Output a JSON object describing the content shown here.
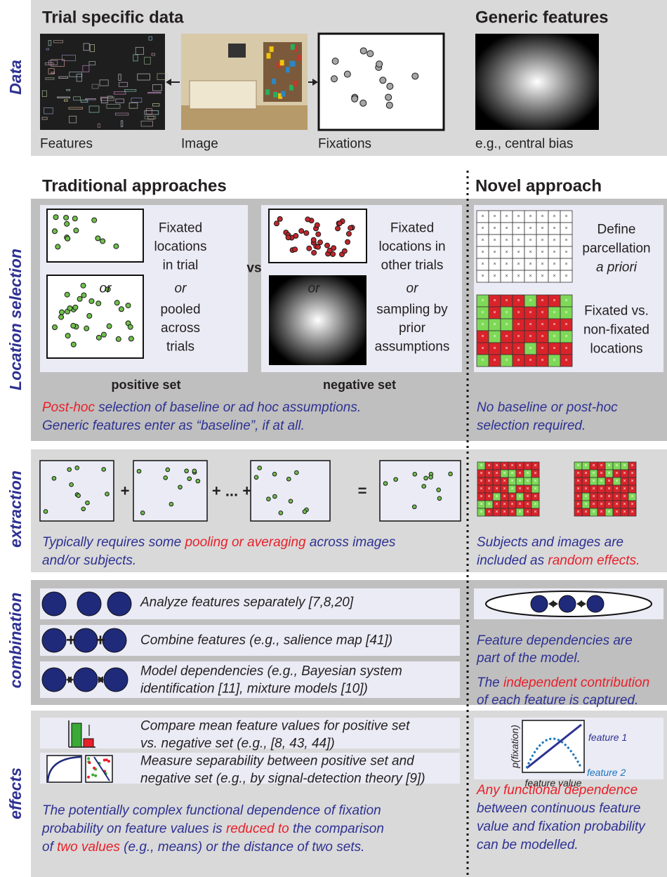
{
  "side_labels": [
    "Data",
    "Location selection",
    "extraction",
    "combination",
    "effects"
  ],
  "data": {
    "trial_title": "Trial specific data",
    "generic_title": "Generic features",
    "captions": [
      "Features",
      "Image",
      "Fixations",
      "e.g., central bias"
    ]
  },
  "headers": {
    "traditional": "Traditional approaches",
    "novel": "Novel approach"
  },
  "location": {
    "positive_top": [
      "Fixated",
      "locations",
      "in trial"
    ],
    "positive_bottom": [
      "pooled",
      "across",
      "trials"
    ],
    "negative_top": [
      "Fixated",
      "locations in",
      "other trials"
    ],
    "negative_bottom": [
      "sampling by",
      "prior",
      "assumptions"
    ],
    "or": "or",
    "vs": "vs",
    "positive_label": "positive set",
    "negative_label": "negative set",
    "novel_top": [
      "Define",
      "parcellation",
      "a priori"
    ],
    "novel_bottom": [
      "Fixated vs.",
      "non-fixated",
      "locations"
    ],
    "note": [
      [
        {
          "text": "Post-hoc",
          "color": "#e8202a"
        },
        {
          "text": " selection of baseline or ad hoc assumptions.",
          "color": "#2e3192"
        }
      ],
      [
        {
          "text": "Generic features enter as “baseline”, if at all.",
          "color": "#2e3192"
        }
      ]
    ],
    "novel_note": [
      [
        {
          "text": "No baseline or post-hoc",
          "color": "#2e3192"
        }
      ],
      [
        {
          "text": "selection required.",
          "color": "#2e3192"
        }
      ]
    ]
  },
  "extraction": {
    "plus": "+",
    "ellipsis": "+ ... +",
    "equals": "=",
    "note": [
      [
        {
          "text": "Typically requires some ",
          "color": "#2e3192"
        },
        {
          "text": "pooling or averaging",
          "color": "#e8202a"
        },
        {
          "text": " across images",
          "color": "#2e3192"
        }
      ],
      [
        {
          "text": "and/or subjects.",
          "color": "#2e3192"
        }
      ]
    ],
    "novel_note": [
      [
        {
          "text": "Subjects and images are",
          "color": "#2e3192"
        }
      ],
      [
        {
          "text": "included as ",
          "color": "#2e3192"
        },
        {
          "text": "random effects.",
          "color": "#e8202a"
        }
      ]
    ]
  },
  "combination": {
    "rows": [
      [
        "Analyze features separately [7,8,20]"
      ],
      [
        "Combine features (e.g., salience map [41])"
      ],
      [
        "Model dependencies (e.g., Bayesian system",
        "identification [11], mixture models [10])"
      ]
    ],
    "plus": "+",
    "novel_note": [
      [
        {
          "text": "Feature dependencies are",
          "color": "#2e3192"
        }
      ],
      [
        {
          "text": "part of the model.",
          "color": "#2e3192"
        }
      ]
    ],
    "novel_note2": [
      [
        {
          "text": "The ",
          "color": "#2e3192"
        },
        {
          "text": "independent contribution",
          "color": "#e8202a"
        }
      ],
      [
        {
          "text": "of each feature is captured.",
          "color": "#2e3192"
        }
      ]
    ]
  },
  "effects": {
    "rows": [
      [
        "Compare mean feature values for positive set",
        "vs. negative set (e.g., [8, 43, 44])"
      ],
      [
        "Measure separability between positive set and",
        "negative set (e.g., by signal-detection theory [9])"
      ]
    ],
    "axis_y": "p(fixation)",
    "axis_x": "feature value",
    "series": [
      {
        "name": "feature 1",
        "color": "#2e3192"
      },
      {
        "name": "feature 2",
        "color": "#1b75bb"
      }
    ],
    "note": [
      [
        {
          "text": "The potentially complex functional dependence of fixation",
          "color": "#2e3192"
        }
      ],
      [
        {
          "text": "probability on feature values is ",
          "color": "#2e3192"
        },
        {
          "text": "reduced to",
          "color": "#e8202a"
        },
        {
          "text": " the comparison",
          "color": "#2e3192"
        }
      ],
      [
        {
          "text": "of ",
          "color": "#2e3192"
        },
        {
          "text": "two values",
          "color": "#e8202a"
        },
        {
          "text": " (e.g., means) or the distance of two sets.",
          "color": "#2e3192"
        }
      ]
    ],
    "novel_note": [
      [
        {
          "text": "Any functional dependence",
          "color": "#e8202a"
        }
      ],
      [
        {
          "text": "between continuous feature",
          "color": "#2e3192"
        }
      ],
      [
        {
          "text": "value and fixation probability",
          "color": "#2e3192"
        }
      ],
      [
        {
          "text": "can be modelled.",
          "color": "#2e3192"
        }
      ]
    ]
  }
}
